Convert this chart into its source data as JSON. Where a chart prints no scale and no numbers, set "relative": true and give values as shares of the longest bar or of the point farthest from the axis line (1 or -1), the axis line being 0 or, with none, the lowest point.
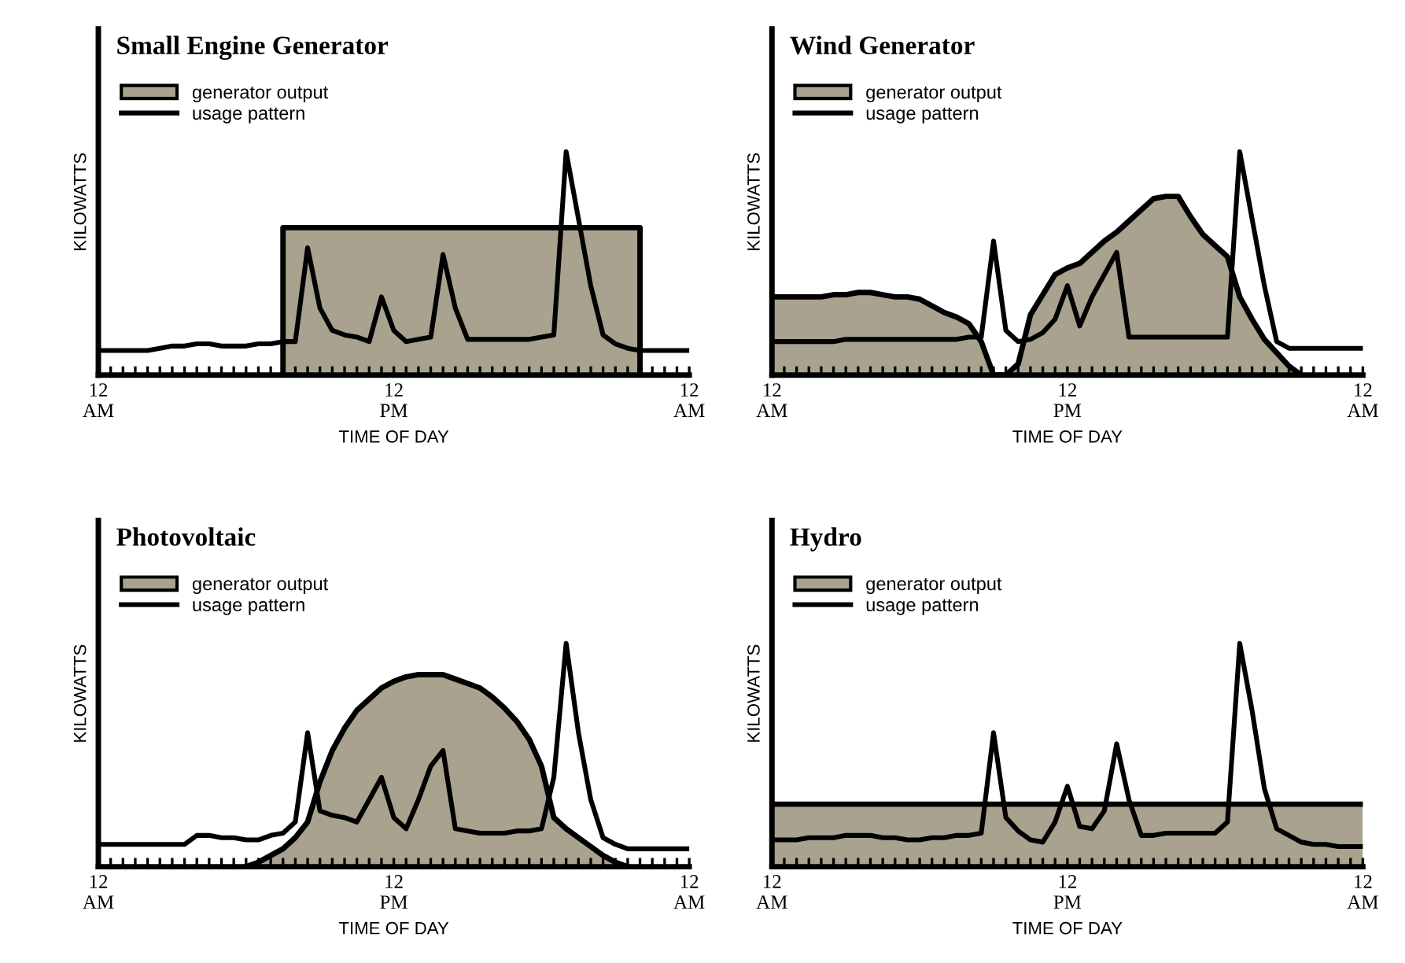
{
  "chart_data": [
    {
      "type": "line",
      "title": "Small Engine Generator",
      "xlabel": "TIME OF DAY",
      "ylabel": "KILOWATTS",
      "relative": true,
      "legend": "top left",
      "grid": false,
      "tick_labels": "x",
      "categories": [
        "12\nAM",
        null,
        null,
        null,
        null,
        null,
        null,
        null,
        null,
        null,
        null,
        null,
        null,
        null,
        null,
        null,
        null,
        null,
        null,
        null,
        null,
        null,
        null,
        null,
        "12\nPM",
        null,
        null,
        null,
        null,
        null,
        null,
        null,
        null,
        null,
        null,
        null,
        null,
        null,
        null,
        null,
        null,
        null,
        null,
        null,
        null,
        null,
        null,
        null,
        "12\nAM"
      ],
      "series": [
        {
          "name": "generator output",
          "type": "area",
          "color": "#a8a28e",
          "values": [
            null,
            null,
            null,
            null,
            null,
            null,
            null,
            null,
            null,
            null,
            null,
            null,
            null,
            null,
            null,
            0.66,
            0.66,
            0.66,
            0.66,
            0.66,
            0.66,
            0.66,
            0.66,
            0.66,
            0.66,
            0.66,
            0.66,
            0.66,
            0.66,
            0.66,
            0.66,
            0.66,
            0.66,
            0.66,
            0.66,
            0.66,
            0.66,
            0.66,
            0.66,
            0.66,
            0.66,
            0.66,
            0.66,
            0.66,
            0.66,
            null,
            null,
            null,
            null
          ]
        },
        {
          "name": "usage pattern",
          "color": "#000000",
          "values": [
            0.11,
            0.11,
            0.11,
            0.11,
            0.11,
            0.12,
            0.13,
            0.13,
            0.14,
            0.14,
            0.13,
            0.13,
            0.13,
            0.14,
            0.14,
            0.15,
            0.15,
            0.57,
            0.3,
            0.2,
            0.18,
            0.17,
            0.15,
            0.35,
            0.2,
            0.15,
            0.16,
            0.17,
            0.54,
            0.3,
            0.16,
            0.16,
            0.16,
            0.16,
            0.16,
            0.16,
            0.17,
            0.18,
            1.0,
            0.7,
            0.4,
            0.18,
            0.14,
            0.12,
            0.11,
            0.11,
            0.11,
            0.11,
            0.11
          ]
        }
      ]
    },
    {
      "type": "line",
      "title": "Wind Generator",
      "xlabel": "TIME OF DAY",
      "ylabel": "KILOWATTS",
      "relative": true,
      "legend": "top left",
      "grid": false,
      "tick_labels": "x",
      "categories": [
        "12\nAM",
        null,
        null,
        null,
        null,
        null,
        null,
        null,
        null,
        null,
        null,
        null,
        null,
        null,
        null,
        null,
        null,
        null,
        null,
        null,
        null,
        null,
        null,
        null,
        "12\nPM",
        null,
        null,
        null,
        null,
        null,
        null,
        null,
        null,
        null,
        null,
        null,
        null,
        null,
        null,
        null,
        null,
        null,
        null,
        null,
        null,
        null,
        null,
        null,
        "12\nAM"
      ],
      "series": [
        {
          "name": "generator output",
          "type": "area",
          "color": "#a8a28e",
          "values": [
            0.35,
            0.35,
            0.35,
            0.35,
            0.35,
            0.36,
            0.36,
            0.37,
            0.37,
            0.36,
            0.35,
            0.35,
            0.34,
            0.31,
            0.28,
            0.26,
            0.23,
            0.15,
            0,
            0,
            0.05,
            0.27,
            0.36,
            0.45,
            0.48,
            0.5,
            0.55,
            0.6,
            0.64,
            0.69,
            0.74,
            0.79,
            0.8,
            0.8,
            0.71,
            0.63,
            0.58,
            0.53,
            0.35,
            0.25,
            0.16,
            0.1,
            0.04,
            0,
            null,
            null,
            null,
            null,
            null
          ]
        },
        {
          "name": "usage pattern",
          "color": "#000000",
          "values": [
            0.15,
            0.15,
            0.15,
            0.15,
            0.15,
            0.15,
            0.16,
            0.16,
            0.16,
            0.16,
            0.16,
            0.16,
            0.16,
            0.16,
            0.16,
            0.16,
            0.17,
            0.17,
            0.6,
            0.2,
            0.15,
            0.16,
            0.19,
            0.25,
            0.4,
            0.22,
            0.35,
            0.45,
            0.55,
            0.17,
            0.17,
            0.17,
            0.17,
            0.17,
            0.17,
            0.17,
            0.17,
            0.17,
            1.0,
            0.7,
            0.4,
            0.15,
            0.12,
            0.12,
            0.12,
            0.12,
            0.12,
            0.12,
            0.12
          ]
        }
      ]
    },
    {
      "type": "line",
      "title": "Photovoltaic",
      "xlabel": "TIME OF DAY",
      "ylabel": "KILOWATTS",
      "relative": true,
      "legend": "top left",
      "grid": false,
      "tick_labels": "x",
      "categories": [
        "12\nAM",
        null,
        null,
        null,
        null,
        null,
        null,
        null,
        null,
        null,
        null,
        null,
        null,
        null,
        null,
        null,
        null,
        null,
        null,
        null,
        null,
        null,
        null,
        null,
        "12\nPM",
        null,
        null,
        null,
        null,
        null,
        null,
        null,
        null,
        null,
        null,
        null,
        null,
        null,
        null,
        null,
        null,
        null,
        null,
        null,
        null,
        null,
        null,
        null,
        "12\nAM"
      ],
      "series": [
        {
          "name": "generator output",
          "type": "area",
          "color": "#a8a28e",
          "values": [
            null,
            null,
            null,
            null,
            null,
            null,
            null,
            null,
            null,
            null,
            null,
            null,
            0,
            0.02,
            0.05,
            0.08,
            0.13,
            0.2,
            0.38,
            0.52,
            0.62,
            0.7,
            0.75,
            0.8,
            0.83,
            0.85,
            0.86,
            0.86,
            0.86,
            0.84,
            0.82,
            0.8,
            0.76,
            0.71,
            0.65,
            0.57,
            0.45,
            0.22,
            0.17,
            0.13,
            0.09,
            0.05,
            0.02,
            0,
            null,
            null,
            null,
            null,
            null
          ]
        },
        {
          "name": "usage pattern",
          "color": "#000000",
          "values": [
            0.1,
            0.1,
            0.1,
            0.1,
            0.1,
            0.1,
            0.1,
            0.1,
            0.14,
            0.14,
            0.13,
            0.13,
            0.12,
            0.12,
            0.14,
            0.15,
            0.2,
            0.6,
            0.25,
            0.23,
            0.22,
            0.2,
            0.3,
            0.4,
            0.22,
            0.17,
            0.3,
            0.45,
            0.52,
            0.17,
            0.16,
            0.15,
            0.15,
            0.15,
            0.16,
            0.16,
            0.17,
            0.4,
            1.0,
            0.6,
            0.3,
            0.13,
            0.1,
            0.08,
            0.08,
            0.08,
            0.08,
            0.08,
            0.08
          ]
        }
      ]
    },
    {
      "type": "line",
      "title": "Hydro",
      "xlabel": "TIME OF DAY",
      "ylabel": "KILOWATTS",
      "relative": true,
      "legend": "top left",
      "grid": false,
      "tick_labels": "x",
      "categories": [
        "12\nAM",
        null,
        null,
        null,
        null,
        null,
        null,
        null,
        null,
        null,
        null,
        null,
        null,
        null,
        null,
        null,
        null,
        null,
        null,
        null,
        null,
        null,
        null,
        null,
        "12\nPM",
        null,
        null,
        null,
        null,
        null,
        null,
        null,
        null,
        null,
        null,
        null,
        null,
        null,
        null,
        null,
        null,
        null,
        null,
        null,
        null,
        null,
        null,
        null,
        "12\nAM"
      ],
      "series": [
        {
          "name": "generator output",
          "type": "area",
          "color": "#a8a28e",
          "values": [
            0.28,
            0.28,
            0.28,
            0.28,
            0.28,
            0.28,
            0.28,
            0.28,
            0.28,
            0.28,
            0.28,
            0.28,
            0.28,
            0.28,
            0.28,
            0.28,
            0.28,
            0.28,
            0.28,
            0.28,
            0.28,
            0.28,
            0.28,
            0.28,
            0.28,
            0.28,
            0.28,
            0.28,
            0.28,
            0.28,
            0.28,
            0.28,
            0.28,
            0.28,
            0.28,
            0.28,
            0.28,
            0.28,
            0.28,
            0.28,
            0.28,
            0.28,
            0.28,
            0.28,
            0.28,
            0.28,
            0.28,
            0.28,
            0.28
          ]
        },
        {
          "name": "usage pattern",
          "color": "#000000",
          "values": [
            0.12,
            0.12,
            0.12,
            0.13,
            0.13,
            0.13,
            0.14,
            0.14,
            0.14,
            0.13,
            0.13,
            0.12,
            0.12,
            0.13,
            0.13,
            0.14,
            0.14,
            0.15,
            0.6,
            0.22,
            0.16,
            0.12,
            0.11,
            0.2,
            0.36,
            0.18,
            0.17,
            0.25,
            0.55,
            0.3,
            0.14,
            0.14,
            0.15,
            0.15,
            0.15,
            0.15,
            0.15,
            0.2,
            1.0,
            0.7,
            0.35,
            0.17,
            0.14,
            0.11,
            0.1,
            0.1,
            0.09,
            0.09,
            0.09
          ]
        }
      ]
    }
  ]
}
